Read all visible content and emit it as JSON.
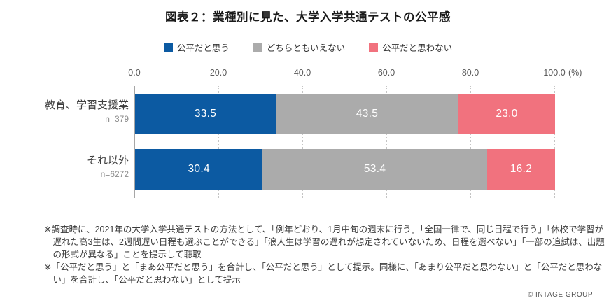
{
  "title": "図表２：業種別に見た、大学入学共通テストの公平感",
  "legend": [
    {
      "label": "公平だと思う",
      "color": "#0c5aa2"
    },
    {
      "label": "どちらともいえない",
      "color": "#ababab"
    },
    {
      "label": "公平だと思わない",
      "color": "#f1727e"
    }
  ],
  "chart_data": {
    "type": "bar",
    "orientation": "horizontal",
    "stacked": true,
    "title": "図表２：業種別に見た、大学入学共通テストの公平感",
    "categories": [
      "教育、学習支援業",
      "それ以外"
    ],
    "category_ns": [
      "n=379",
      "n=6272"
    ],
    "series": [
      {
        "name": "公平だと思う",
        "color": "#0c5aa2",
        "values": [
          33.5,
          30.4
        ]
      },
      {
        "name": "どちらともいえない",
        "color": "#ababab",
        "values": [
          43.5,
          53.4
        ]
      },
      {
        "name": "公平だと思わない",
        "color": "#f1727e",
        "values": [
          23.0,
          16.2
        ]
      }
    ],
    "xlim": [
      0,
      100
    ],
    "x_ticks": [
      0,
      20,
      40,
      60,
      80,
      100
    ],
    "x_tick_labels": [
      "0.0",
      "20.0",
      "40.0",
      "60.0",
      "80.0",
      "100.0"
    ],
    "x_axis_unit": "(%)",
    "grid": "dotted-vertical",
    "legend_position": "top",
    "value_label_format": "one-decimal"
  },
  "footnotes": [
    "※調査時に、2021年の大学入学共通テストの方法として、「例年どおり、1月中旬の週末に行う」「全国一律で、同じ日程で行う」「休校で学習が遅れた高3生は、2週間遅い日程も選ぶことができる」「浪人生は学習の遅れが想定されていないため、日程を選べない」「一部の追試は、出題の形式が異なる」ことを提示して聴取",
    "※「公平だと思う」と「まあ公平だと思う」を合計し、「公平だと思う」として提示。同様に、「あまり公平だと思わない」と「公平だと思わない」を合計し、「公平だと思わない」として提示"
  ],
  "copyright": "© INTAGE GROUP"
}
